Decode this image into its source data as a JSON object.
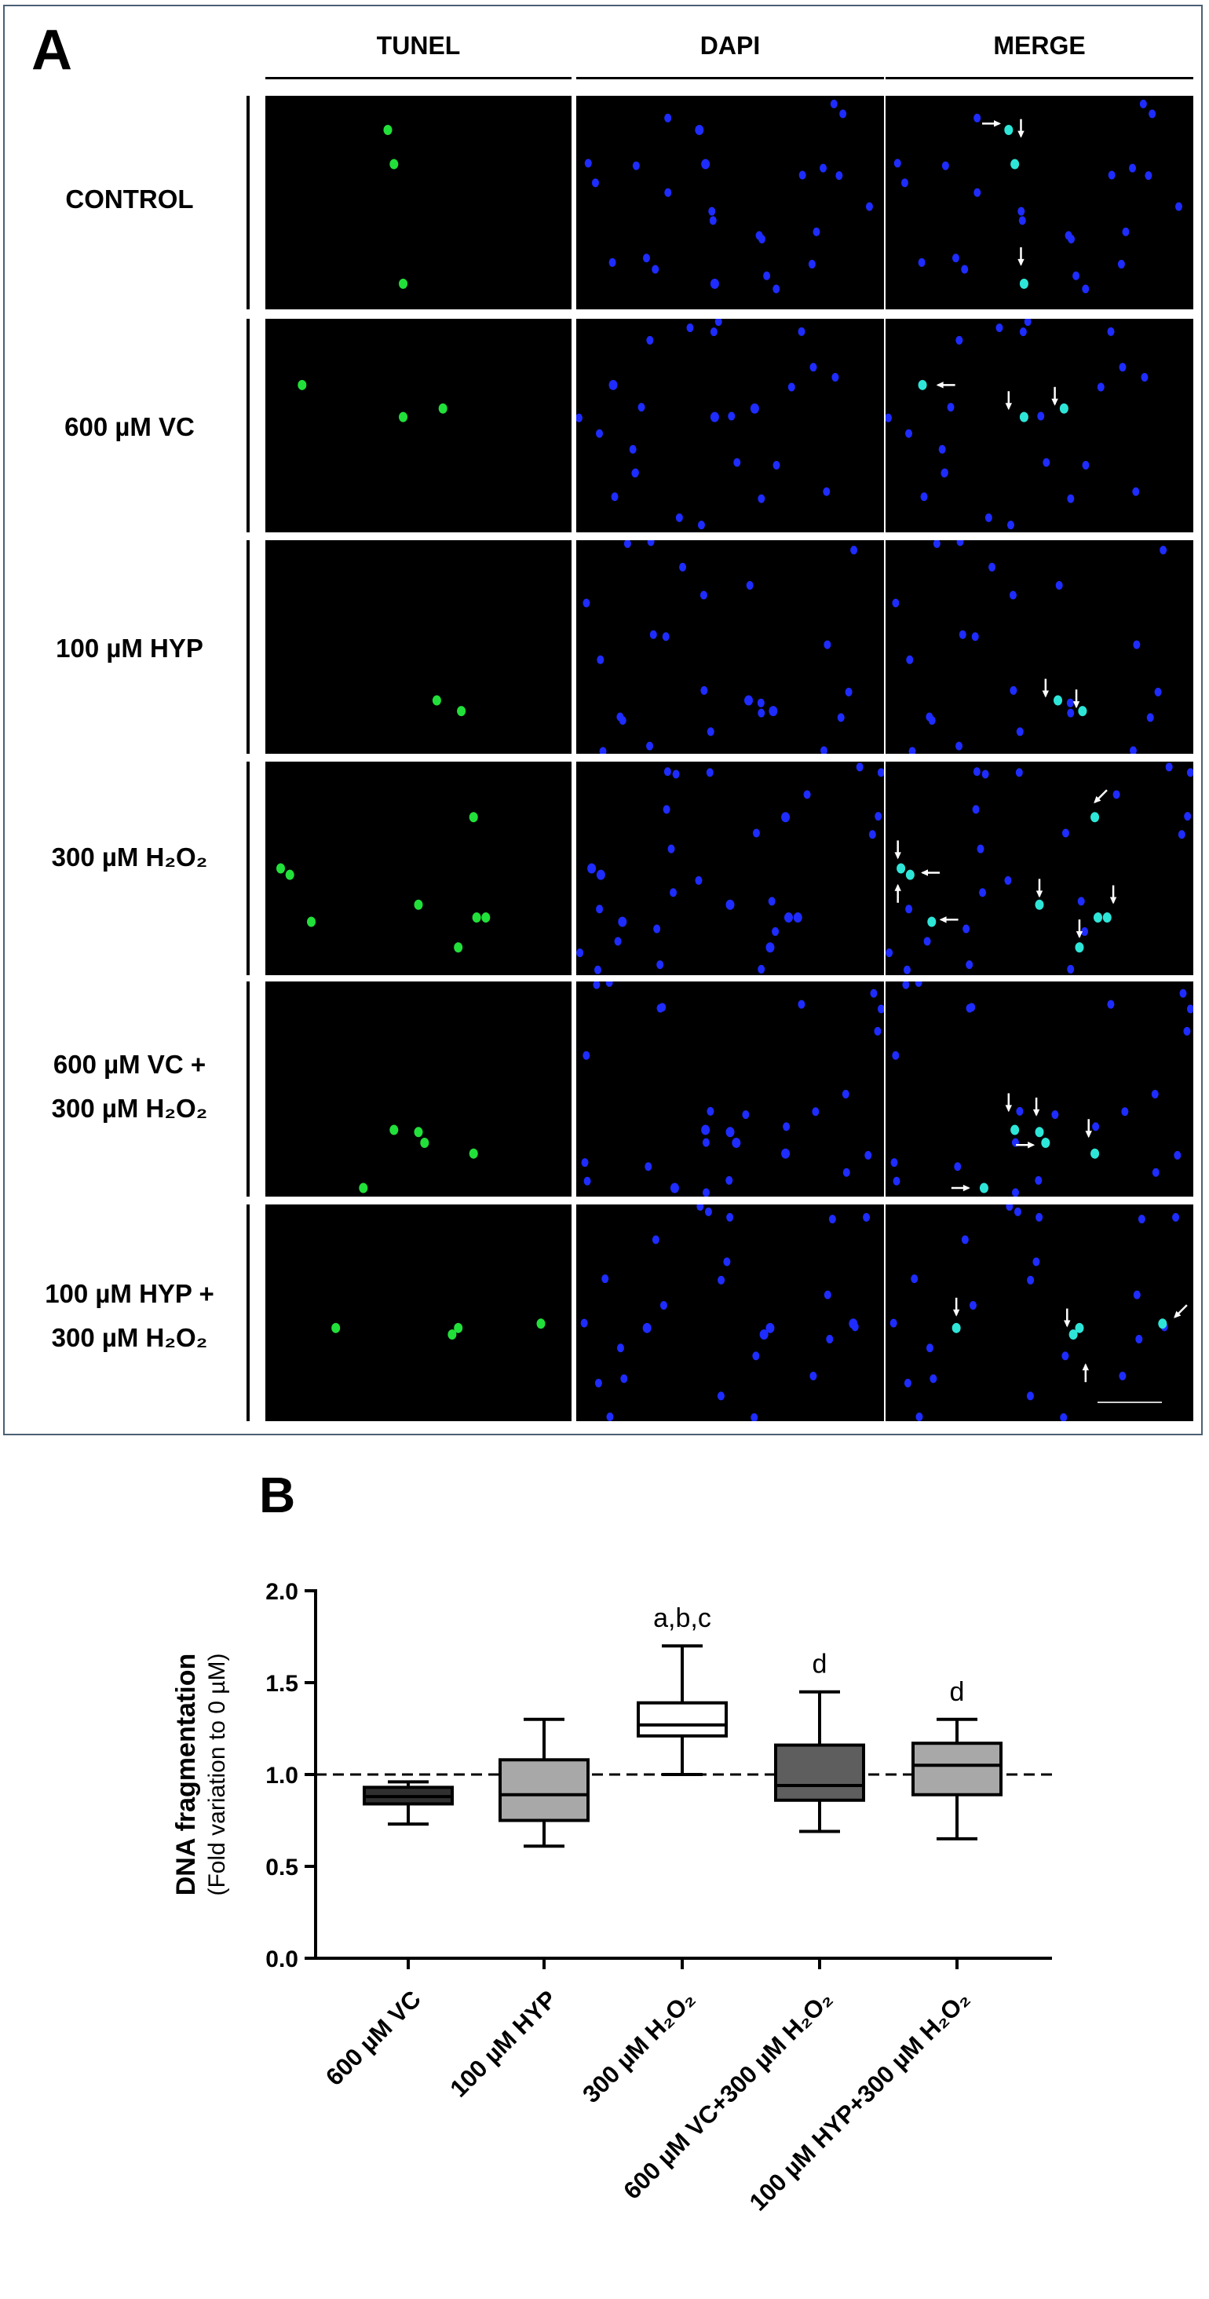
{
  "panel_a": {
    "letter": "A",
    "columns": [
      "TUNEL",
      "DAPI",
      "MERGE"
    ],
    "rows": [
      {
        "label": "CONTROL"
      },
      {
        "label": "600 µM VC"
      },
      {
        "label": "100 µM HYP"
      },
      {
        "label": "300 µM H₂O₂"
      },
      {
        "label_line1": "600 µM VC +",
        "label_line2": "300 µM H₂O₂"
      },
      {
        "label_line1": "100 µM HYP +",
        "label_line2": "300 µM H₂O₂"
      }
    ],
    "colors": {
      "tunel": "#22e03a",
      "dapi": "#1e2cff",
      "merge": "#2ee6d8",
      "arrow": "#ffffff"
    }
  },
  "panel_b": {
    "letter": "B"
  },
  "chart_data": {
    "type": "box",
    "ylabel_main": "DNA fragmentation",
    "ylabel_sub": "(Fold variation to 0 µM)",
    "ylim": [
      0,
      2.0
    ],
    "yticks": [
      "0.0",
      "0.5",
      "1.0",
      "1.5",
      "2.0"
    ],
    "reference_line": 1.0,
    "categories": [
      "600 µM VC",
      "100 µM HYP",
      "300 µM H₂O₂",
      "600 µM VC+300 µM H₂O₂",
      "100 µM HYP+300 µM H₂O₂"
    ],
    "boxes": [
      {
        "min": 0.73,
        "q1": 0.84,
        "median": 0.88,
        "q3": 0.93,
        "max": 0.96,
        "annotation": "",
        "fill": "#303030"
      },
      {
        "min": 0.61,
        "q1": 0.75,
        "median": 0.89,
        "q3": 1.08,
        "max": 1.3,
        "annotation": "",
        "fill": "#a8a8a8"
      },
      {
        "min": 1.0,
        "q1": 1.21,
        "median": 1.27,
        "q3": 1.39,
        "max": 1.7,
        "annotation": "a,b,c",
        "fill": "#ffffff"
      },
      {
        "min": 0.69,
        "q1": 0.86,
        "median": 0.94,
        "q3": 1.16,
        "max": 1.45,
        "annotation": "d",
        "fill": "#5e5e5e"
      },
      {
        "min": 0.65,
        "q1": 0.89,
        "median": 1.05,
        "q3": 1.17,
        "max": 1.3,
        "annotation": "d",
        "fill": "#a8a8a8"
      }
    ],
    "grid": false
  }
}
